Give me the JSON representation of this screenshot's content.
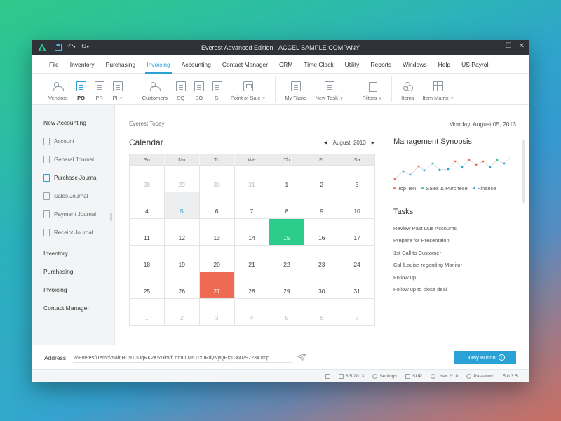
{
  "window": {
    "title": "Everest Advanced Edition - ACCEL SAMPLE COMPANY"
  },
  "menubar": {
    "items": [
      "File",
      "Inventory",
      "Purchasing",
      "Invoicing",
      "Accounting",
      "Contact Manager",
      "CRM",
      "Time Clock",
      "Utility",
      "Reports",
      "Windows",
      "Help",
      "US Payroll"
    ],
    "active": "Invoicing"
  },
  "toolbar": {
    "vendors": "Vendors",
    "po": "PO",
    "pr": "PR",
    "pi": "PI",
    "customers": "Customers",
    "sq": "SQ",
    "so": "SO",
    "si": "SI",
    "point_of_sale": "Point of Sale",
    "my_tasks": "My Tasks",
    "new_task": "New Task",
    "filters": "Filters",
    "items": "Items",
    "item_matrix": "Item Matrix"
  },
  "sidebar": {
    "new_accounting": "New Accounting",
    "sub_items": [
      "Account",
      "General Journal",
      "Purchase Journal",
      "Sales Journal",
      "Payment Journal",
      "Receipt Journal"
    ],
    "active_sub": "Purchase Journal",
    "sections": [
      "Inventory",
      "Purchasing",
      "Invoicing",
      "Contact Manager"
    ]
  },
  "main": {
    "everest_today": "Everest Today",
    "date_header": "Monday, August 05, 2013",
    "calendar_title": "Calendar",
    "month_label": "August, 2013",
    "weekdays": [
      "Su",
      "Mo",
      "Tu",
      "We",
      "Th",
      "Fr",
      "Sa"
    ],
    "days": [
      {
        "d": "28",
        "s": "muted"
      },
      {
        "d": "29",
        "s": "muted"
      },
      {
        "d": "30",
        "s": "muted"
      },
      {
        "d": "31",
        "s": "muted"
      },
      {
        "d": "1",
        "s": ""
      },
      {
        "d": "2",
        "s": ""
      },
      {
        "d": "3",
        "s": ""
      },
      {
        "d": "4",
        "s": ""
      },
      {
        "d": "5",
        "s": "today"
      },
      {
        "d": "6",
        "s": ""
      },
      {
        "d": "7",
        "s": ""
      },
      {
        "d": "8",
        "s": ""
      },
      {
        "d": "9",
        "s": ""
      },
      {
        "d": "10",
        "s": ""
      },
      {
        "d": "11",
        "s": ""
      },
      {
        "d": "12",
        "s": ""
      },
      {
        "d": "13",
        "s": ""
      },
      {
        "d": "14",
        "s": ""
      },
      {
        "d": "15",
        "s": "green"
      },
      {
        "d": "16",
        "s": ""
      },
      {
        "d": "17",
        "s": ""
      },
      {
        "d": "18",
        "s": ""
      },
      {
        "d": "19",
        "s": ""
      },
      {
        "d": "20",
        "s": ""
      },
      {
        "d": "21",
        "s": ""
      },
      {
        "d": "22",
        "s": ""
      },
      {
        "d": "23",
        "s": ""
      },
      {
        "d": "24",
        "s": ""
      },
      {
        "d": "25",
        "s": ""
      },
      {
        "d": "26",
        "s": ""
      },
      {
        "d": "27",
        "s": "red"
      },
      {
        "d": "28",
        "s": ""
      },
      {
        "d": "29",
        "s": ""
      },
      {
        "d": "30",
        "s": ""
      },
      {
        "d": "31",
        "s": ""
      },
      {
        "d": "1",
        "s": "muted"
      },
      {
        "d": "2",
        "s": "muted"
      },
      {
        "d": "3",
        "s": "muted"
      },
      {
        "d": "4",
        "s": "muted"
      },
      {
        "d": "5",
        "s": "muted"
      },
      {
        "d": "6",
        "s": "muted"
      },
      {
        "d": "7",
        "s": "muted"
      }
    ]
  },
  "synopsis": {
    "title": "Management Synopsis",
    "legend": [
      {
        "label": "Top Ten",
        "color": "#ee6a52"
      },
      {
        "label": "Sales & Purchese",
        "color": "#2ecc8a"
      },
      {
        "label": "Finance",
        "color": "#2aa2d8"
      }
    ]
  },
  "tasks": {
    "title": "Tasks",
    "items": [
      "Review Past Due Accounts",
      "Prepare for Presentaion",
      "1st Call to Customer",
      "Cal lLouise regarding Monitor",
      "Follow up",
      "Follow up to close deal"
    ]
  },
  "address": {
    "label": "Address",
    "value": "a\\Everest\\Temp\\mainHC9TuUqRK2K5x+bvfLdmLLM6J1xuRdyNyQPlpL360797234.tmp",
    "button": "Dumy Button"
  },
  "status": {
    "date": "8/5/2013",
    "settings": "Settings",
    "sup": "SUP",
    "user": "User 2/10",
    "password": "Password",
    "version": "5.0.3.5"
  },
  "colors": {
    "accent": "#2aa2d8",
    "green": "#2ecc8a",
    "red": "#ee6a52"
  }
}
